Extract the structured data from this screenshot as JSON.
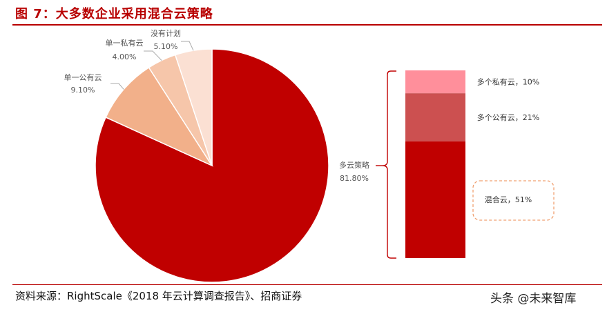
{
  "header": {
    "title": "图 7：大多数企业采用混合云策略"
  },
  "footer": {
    "source": "资料来源：RightScale《2018 年云计算调查报告》、招商证券",
    "watermark": "头条 @未来智库"
  },
  "colors": {
    "accent": "#b80000"
  },
  "chart_data": [
    {
      "type": "pie",
      "slices": [
        {
          "label": "多云策略",
          "value": 81.8,
          "value_label": "81.80%",
          "color": "#c00000"
        },
        {
          "label": "单一公有云",
          "value": 9.1,
          "value_label": "9.10%",
          "color": "#f2b08a"
        },
        {
          "label": "单一私有云",
          "value": 4.0,
          "value_label": "4.00%",
          "color": "#f6c6aa"
        },
        {
          "label": "没有计划",
          "value": 5.1,
          "value_label": "5.10%",
          "color": "#fbe0d3"
        }
      ]
    },
    {
      "type": "bar",
      "stacked": true,
      "segments": [
        {
          "label": "多个私有云，10%",
          "value": 10,
          "color": "#ff8f9b"
        },
        {
          "label": "多个公有云，21%",
          "value": 21,
          "color": "#cc5050"
        },
        {
          "label": "混合云，51%",
          "value": 51,
          "color": "#c00000"
        }
      ]
    }
  ]
}
